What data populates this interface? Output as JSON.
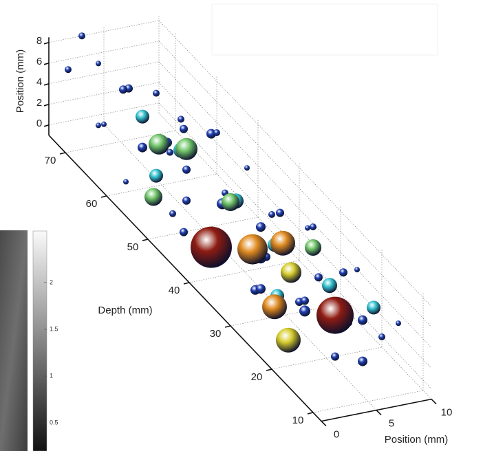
{
  "chart_data": {
    "type": "scatter3d",
    "xlabel": "Position (mm)",
    "ylabel": "Depth (mm)",
    "zlabel": "Position (mm)",
    "xlim": [
      0,
      10
    ],
    "xticks": [
      0,
      5,
      10
    ],
    "ylim": [
      8,
      74
    ],
    "yticks": [
      10,
      20,
      30,
      40,
      50,
      60,
      70
    ],
    "zlim": [
      -1,
      8.5
    ],
    "zticks": [
      0,
      2,
      4,
      6,
      8
    ],
    "grid": true,
    "series": [
      {
        "color": "#1f3fb0",
        "x": [
          1,
          3,
          5,
          2,
          6,
          4,
          7,
          1,
          8,
          5,
          3,
          9,
          6,
          2,
          8,
          4,
          7,
          10,
          5,
          9,
          3,
          8,
          6,
          10,
          4,
          9,
          7,
          5,
          10,
          2,
          0,
          3,
          6,
          9,
          4,
          1,
          6,
          2,
          8,
          10,
          6,
          3,
          7,
          5,
          9
        ],
        "y": [
          72,
          70,
          68,
          66,
          64,
          62,
          60,
          58,
          56,
          54,
          52,
          50,
          48,
          46,
          44,
          42,
          40,
          38,
          36,
          34,
          32,
          30,
          28,
          26,
          24,
          22,
          20,
          18,
          16,
          50,
          62,
          74,
          72,
          66,
          56,
          44,
          36,
          28,
          24,
          20,
          14,
          20,
          52,
          46,
          42
        ],
        "z": [
          6,
          7,
          5,
          3,
          6,
          2,
          4,
          1,
          5,
          3,
          0,
          4,
          2,
          4,
          1,
          6,
          0,
          3,
          2,
          5,
          1,
          2,
          0,
          4,
          3,
          1,
          2,
          0,
          3,
          7,
          5,
          8,
          3,
          2,
          5,
          2,
          6,
          3,
          5,
          0,
          1,
          5,
          7,
          0,
          3
        ],
        "sizes": [
          5,
          4,
          6,
          4,
          5,
          7,
          6,
          4,
          7,
          6,
          5,
          4,
          8,
          6,
          7,
          5,
          6,
          4,
          8,
          5,
          7,
          6,
          8,
          4,
          6,
          7,
          5,
          6,
          4,
          5,
          4,
          5,
          6,
          5,
          7,
          6,
          5,
          7,
          6,
          5,
          7,
          6,
          5,
          8,
          6
        ]
      },
      {
        "color": "#35c3cf",
        "x": [
          4,
          6,
          3,
          8,
          7,
          9,
          5,
          10
        ],
        "y": [
          62,
          58,
          56,
          50,
          38,
          30,
          32,
          22
        ],
        "z": [
          5,
          3,
          2,
          1,
          2,
          1,
          0,
          2
        ],
        "sizes": [
          10,
          11,
          10,
          11,
          10,
          11,
          10,
          10
        ]
      },
      {
        "color": "#72c66a",
        "x": [
          4,
          5,
          2,
          6,
          9
        ],
        "y": [
          58,
          54,
          54,
          46,
          34
        ],
        "z": [
          4,
          5,
          1,
          3,
          3
        ],
        "sizes": [
          15,
          16,
          13,
          13,
          12
        ]
      },
      {
        "color": "#d6cc2c",
        "x": [
          3,
          7
        ],
        "y": [
          24,
          34
        ],
        "z": [
          -0.5,
          1
        ],
        "sizes": [
          18,
          15
        ]
      },
      {
        "color": "#e08a20",
        "x": [
          5,
          7,
          4
        ],
        "y": [
          38,
          36,
          30
        ],
        "z": [
          2,
          3,
          0
        ],
        "sizes": [
          22,
          18,
          18
        ]
      },
      {
        "color": "#8e1c12",
        "x": [
          2,
          8
        ],
        "y": [
          40,
          26
        ],
        "z": [
          2,
          0
        ],
        "sizes": [
          30,
          27
        ]
      }
    ],
    "colorbar": {
      "clim": [
        0.2,
        2.55
      ],
      "ticks": [
        0.5,
        1,
        1.5,
        2
      ]
    }
  }
}
